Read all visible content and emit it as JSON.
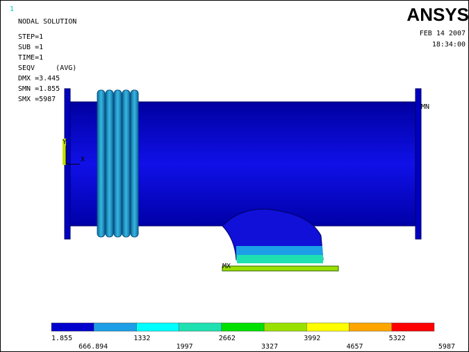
{
  "header": {
    "window_number": "1",
    "title": "NODAL SOLUTION",
    "info": [
      "STEP=1",
      "SUB =1",
      "TIME=1",
      "SEQV     (AVG)",
      "DMX =3.445",
      "SMN =1.855",
      "SMX =5987"
    ],
    "logo": "ANSYS",
    "date": "FEB 14 2007",
    "time": "18:34:00"
  },
  "model": {
    "min_label": "MN",
    "max_label": "MX",
    "axis_y": "Y",
    "axis_x": "X"
  },
  "legend": {
    "colors": [
      "#0000cd",
      "#1c9fe6",
      "#00ffff",
      "#1fe0b0",
      "#00e000",
      "#99e000",
      "#ffff00",
      "#ffa500",
      "#ff0000"
    ],
    "labels": [
      "1.855",
      "666.894",
      "1332",
      "1997",
      "2662",
      "3327",
      "3992",
      "4657",
      "5322",
      "5987"
    ]
  }
}
